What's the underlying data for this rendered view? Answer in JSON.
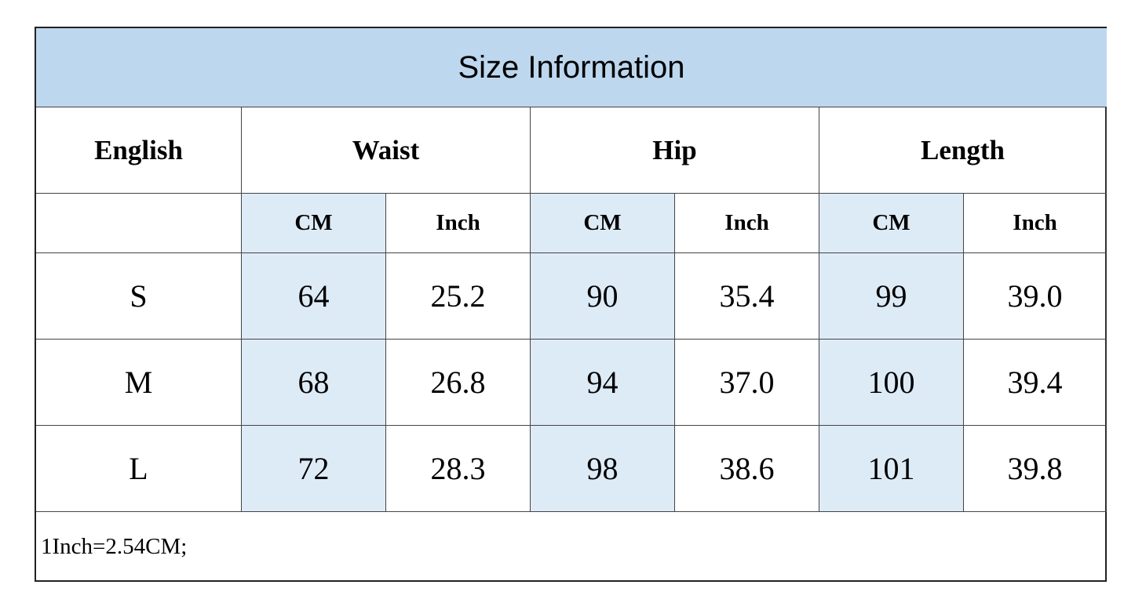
{
  "title": "Size Information",
  "headers": [
    "English",
    "Waist",
    "Hip",
    "Length"
  ],
  "subheaders": [
    "CM",
    "Inch",
    "CM",
    "Inch",
    "CM",
    "Inch"
  ],
  "rows": [
    [
      "S",
      "64",
      "25.2",
      "90",
      "35.4",
      "99",
      "39.0"
    ],
    [
      "M",
      "68",
      "26.8",
      "94",
      "37.0",
      "100",
      "39.4"
    ],
    [
      "L",
      "72",
      "28.3",
      "98",
      "38.6",
      "101",
      "39.8"
    ]
  ],
  "note": "1Inch=2.54CM;"
}
